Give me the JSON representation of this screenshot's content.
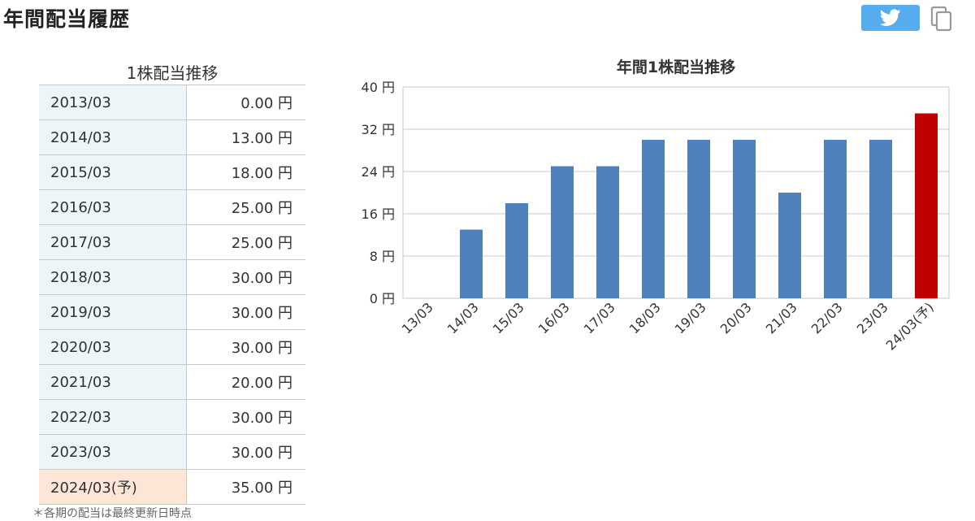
{
  "page_title": "年間配当履歴",
  "share": {
    "twitter_icon": "twitter-bird-icon",
    "copy_icon": "copy-icon"
  },
  "table": {
    "caption": "1株配当推移",
    "rows": [
      {
        "period": "2013/03",
        "value": "0.00 円"
      },
      {
        "period": "2014/03",
        "value": "13.00 円"
      },
      {
        "period": "2015/03",
        "value": "18.00 円"
      },
      {
        "period": "2016/03",
        "value": "25.00 円"
      },
      {
        "period": "2017/03",
        "value": "25.00 円"
      },
      {
        "period": "2018/03",
        "value": "30.00 円"
      },
      {
        "period": "2019/03",
        "value": "30.00 円"
      },
      {
        "period": "2020/03",
        "value": "30.00 円"
      },
      {
        "period": "2021/03",
        "value": "20.00 円"
      },
      {
        "period": "2022/03",
        "value": "30.00 円"
      },
      {
        "period": "2023/03",
        "value": "30.00 円"
      },
      {
        "period": "2024/03(予)",
        "value": "35.00 円",
        "forecast": true
      }
    ],
    "footnote": "＊各期の配当は最終更新日時点"
  },
  "colors": {
    "bar": "#4f81bd",
    "forecast_bar": "#c00000",
    "grid": "#c8c8c8"
  },
  "chart_data": {
    "type": "bar",
    "title": "年間1株配当推移",
    "categories": [
      "13/03",
      "14/03",
      "15/03",
      "16/03",
      "17/03",
      "18/03",
      "19/03",
      "20/03",
      "21/03",
      "22/03",
      "23/03",
      "24/03(予)"
    ],
    "values": [
      0,
      13,
      18,
      25,
      25,
      30,
      30,
      30,
      20,
      30,
      30,
      35
    ],
    "forecast_index": 11,
    "ylim": [
      0,
      40
    ],
    "yticks": [
      0,
      8,
      16,
      24,
      32,
      40
    ],
    "ytick_labels": [
      "0 円",
      "8 円",
      "16 円",
      "24 円",
      "32 円",
      "40 円"
    ],
    "grid": true
  }
}
